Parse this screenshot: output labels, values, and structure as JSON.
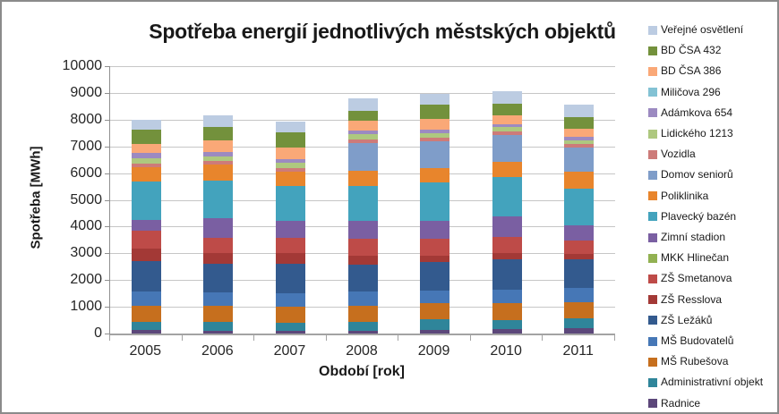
{
  "window": {
    "background": "#ffffff",
    "border_color": "#8b8b8b"
  },
  "chart_data": {
    "type": "bar",
    "stacked": true,
    "title": "Spotřeba energií jednotlivých městských objektů",
    "xlabel": "Období [rok]",
    "ylabel": "Spotřeba [MWh]",
    "ylim": [
      0,
      10000
    ],
    "y_tick_step": 1000,
    "y_ticks": [
      "0",
      "1000",
      "2000",
      "3000",
      "4000",
      "5000",
      "6000",
      "7000",
      "8000",
      "9000",
      "10000"
    ],
    "grid": true,
    "legend_position": "right",
    "stack_order": "reverse of legend: Radnice at bottom, Veřejné osvětlení at top",
    "categories": [
      "2005",
      "2006",
      "2007",
      "2008",
      "2009",
      "2010",
      "2011"
    ],
    "approx_totals_mwh": [
      7980,
      8165,
      7920,
      8785,
      8975,
      9080,
      8555
    ],
    "series": [
      {
        "name": "Veřejné osvětlení",
        "color": "#bccce2",
        "values": [
          360,
          450,
          395,
          450,
          405,
          485,
          470
        ]
      },
      {
        "name": "BD ČSA 432",
        "color": "#73913c",
        "values": [
          515,
          505,
          585,
          380,
          530,
          450,
          425
        ]
      },
      {
        "name": "BD ČSA 386",
        "color": "#faa877",
        "values": [
          360,
          415,
          405,
          370,
          415,
          315,
          305
        ]
      },
      {
        "name": "Miličova 296",
        "color": "#83c2d4",
        "values": [
          0,
          0,
          0,
          0,
          0,
          0,
          0
        ]
      },
      {
        "name": "Adámkova 654",
        "color": "#9c8ac1",
        "values": [
          200,
          170,
          135,
          125,
          125,
          100,
          145
        ]
      },
      {
        "name": "Lidického 1213",
        "color": "#aec87f",
        "values": [
          190,
          170,
          200,
          190,
          170,
          180,
          135
        ]
      },
      {
        "name": "Vozidla",
        "color": "#cd7b79",
        "values": [
          145,
          145,
          135,
          145,
          135,
          110,
          135
        ]
      },
      {
        "name": "Domov seniorů",
        "color": "#7f9dc9",
        "values": [
          0,
          0,
          0,
          1025,
          1010,
          1010,
          875
        ]
      },
      {
        "name": "Poliklinika",
        "color": "#e8852c",
        "values": [
          530,
          605,
          560,
          575,
          540,
          585,
          640
        ]
      },
      {
        "name": "Plavecký bazén",
        "color": "#43a3bd",
        "values": [
          1430,
          1385,
          1295,
          1315,
          1430,
          1460,
          1385
        ]
      },
      {
        "name": "Zimní stadion",
        "color": "#7a5fa2",
        "values": [
          405,
          730,
          640,
          665,
          675,
          765,
          560
        ]
      },
      {
        "name": "MKK Hlinečan",
        "color": "#92b152",
        "values": [
          0,
          0,
          0,
          0,
          0,
          0,
          0
        ]
      },
      {
        "name": "ZŠ Smetanova",
        "color": "#be4b48",
        "values": [
          675,
          585,
          560,
          630,
          620,
          605,
          505
        ]
      },
      {
        "name": "ZŠ Resslova",
        "color": "#a33936",
        "values": [
          470,
          405,
          405,
          335,
          245,
          225,
          190
        ]
      },
      {
        "name": "ZŠ Ležáků",
        "color": "#335a8e",
        "values": [
          1125,
          1055,
          1090,
          1010,
          1080,
          1160,
          1080
        ]
      },
      {
        "name": "MŠ Budovatelů",
        "color": "#4677b6",
        "values": [
          540,
          515,
          505,
          530,
          470,
          505,
          550
        ]
      },
      {
        "name": "MŠ Rubešova",
        "color": "#c66f1e",
        "values": [
          585,
          605,
          620,
          595,
          585,
          620,
          595
        ]
      },
      {
        "name": "Administrativní objekt",
        "color": "#2f859a",
        "values": [
          315,
          315,
          280,
          335,
          405,
          335,
          360
        ]
      },
      {
        "name": "Radnice",
        "color": "#5c477a",
        "values": [
          135,
          110,
          110,
          110,
          135,
          170,
          200
        ]
      }
    ]
  }
}
